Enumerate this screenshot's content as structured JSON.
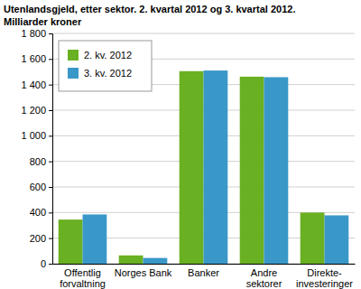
{
  "chart_data": {
    "type": "bar",
    "title": "Utenlandsgjeld, etter sektor. 2. kvartal 2012 og 3. kvartal 2012.",
    "subtitle": "Milliarder kroner",
    "categories": [
      "Offentlig\nforvaltning",
      "Norges Bank",
      "Banker",
      "Andre\nsektorer",
      "Direkte-\ninvesteringer"
    ],
    "series": [
      {
        "name": "2. kv. 2012",
        "color": "#6ab023",
        "values": [
          345,
          65,
          1505,
          1462,
          400
        ]
      },
      {
        "name": "3. kv. 2012",
        "color": "#3a98c8",
        "values": [
          385,
          45,
          1510,
          1458,
          378
        ]
      }
    ],
    "ylim": [
      0,
      1800
    ],
    "yticks": [
      0,
      200,
      400,
      600,
      800,
      {
        "value": 1000,
        "label": "1 000"
      },
      {
        "value": 1200,
        "label": "1 200"
      },
      {
        "value": 1400,
        "label": "1 400"
      },
      {
        "value": 1600,
        "label": "1 600"
      },
      {
        "value": 1800,
        "label": "1 800"
      }
    ],
    "grid": true,
    "legend": "top-left"
  }
}
